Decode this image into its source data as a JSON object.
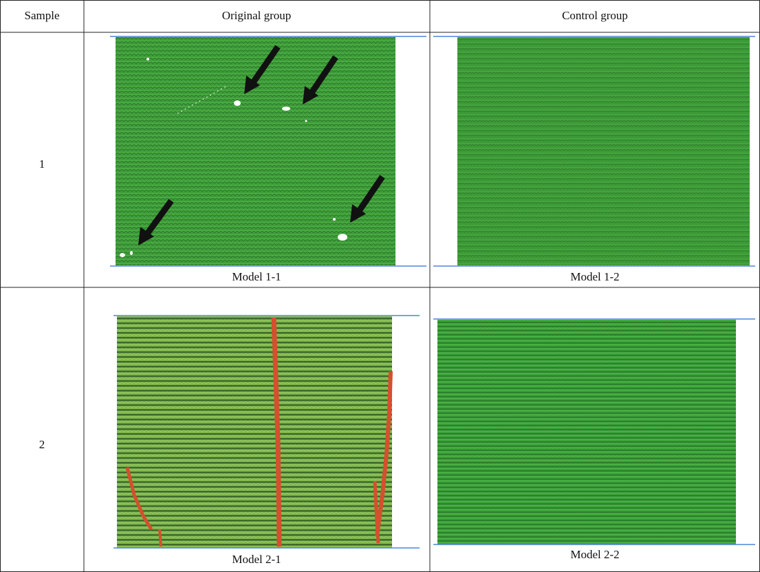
{
  "table": {
    "header": [
      "Sample",
      "Original group",
      "Control group"
    ],
    "rows": [
      [
        "1",
        "Model 1-1",
        "Model 1-2"
      ],
      [
        "2",
        "Model 2-1",
        "Model 2-2"
      ]
    ]
  }
}
